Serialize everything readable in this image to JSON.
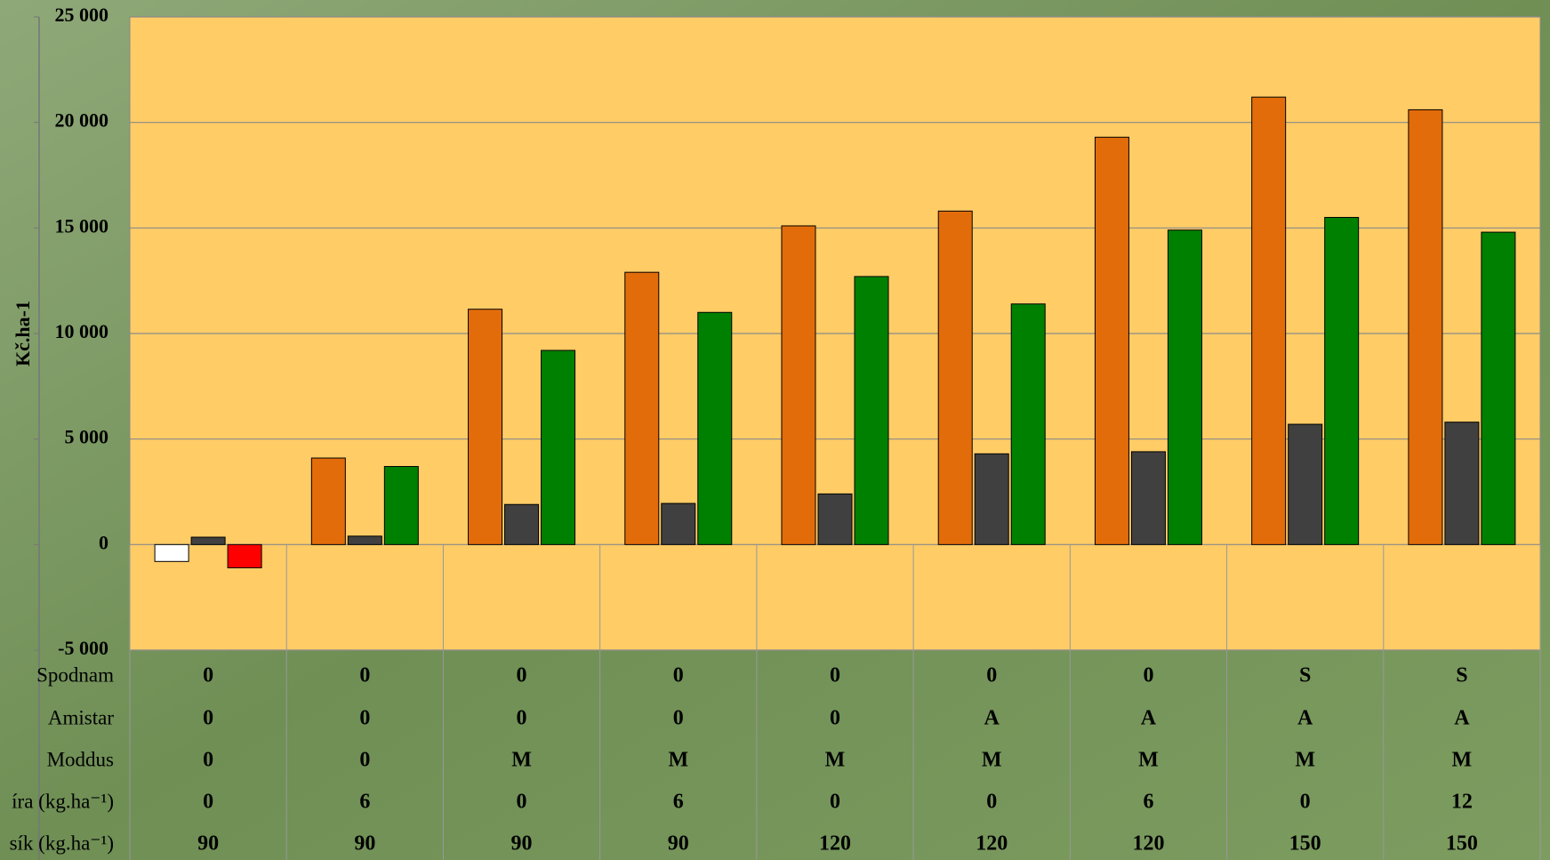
{
  "chart_data": {
    "type": "bar",
    "y_label": "Kč.ha-1",
    "categories": [
      null,
      null,
      null,
      null,
      null,
      null,
      null,
      null,
      null
    ],
    "series": [
      {
        "color": "#e36c0a",
        "colors": [
          "#ffffff",
          "#e36c0a",
          "#e36c0a",
          "#e36c0a",
          "#e36c0a",
          "#e36c0a",
          "#e36c0a",
          "#e36c0a",
          "#e36c0a"
        ],
        "values": [
          -800,
          4100,
          11150,
          12900,
          15100,
          15800,
          19300,
          21200,
          20600
        ]
      },
      {
        "color": "#404040",
        "colors": [
          "#404040",
          "#404040",
          "#404040",
          "#404040",
          "#404040",
          "#404040",
          "#404040",
          "#404040",
          "#404040"
        ],
        "values": [
          350,
          400,
          1900,
          1950,
          2400,
          4300,
          4400,
          5700,
          5800
        ]
      },
      {
        "color": "#008000",
        "colors": [
          "#ff0000",
          "#008000",
          "#008000",
          "#008000",
          "#008000",
          "#008000",
          "#008000",
          "#008000",
          "#008000"
        ],
        "values": [
          -1100,
          3700,
          9200,
          11000,
          12700,
          11400,
          14900,
          15500,
          14800
        ]
      }
    ],
    "ylim": [
      -5000,
      25000
    ],
    "yticks": [
      {
        "value": -5000,
        "label": "-5 000"
      },
      0,
      {
        "value": 5000,
        "label": "5 000"
      },
      {
        "value": 10000,
        "label": "10 000"
      },
      {
        "value": 15000,
        "label": "15 000"
      },
      {
        "value": 20000,
        "label": "20 000"
      },
      {
        "value": 25000,
        "label": "25 000"
      }
    ],
    "grid": true,
    "plot_color": "#ffcc66",
    "table_rows": [
      {
        "label": "Spodnam",
        "values": [
          "0",
          "0",
          "0",
          "0",
          "0",
          "0",
          "0",
          "S",
          "S"
        ]
      },
      {
        "label": "Amistar",
        "values": [
          "0",
          "0",
          "0",
          "0",
          "0",
          "A",
          "A",
          "A",
          "A"
        ]
      },
      {
        "label": "Moddus",
        "values": [
          "0",
          "0",
          "M",
          "M",
          "M",
          "M",
          "M",
          "M",
          "M"
        ]
      },
      {
        "label": "íra (kg.ha⁻¹)",
        "values": [
          "0",
          "6",
          "0",
          "6",
          "0",
          "0",
          "6",
          "0",
          "12"
        ]
      },
      {
        "label": "sík (kg.ha⁻¹)",
        "values": [
          "90",
          "90",
          "90",
          "90",
          "120",
          "120",
          "120",
          "150",
          "150"
        ]
      }
    ]
  }
}
